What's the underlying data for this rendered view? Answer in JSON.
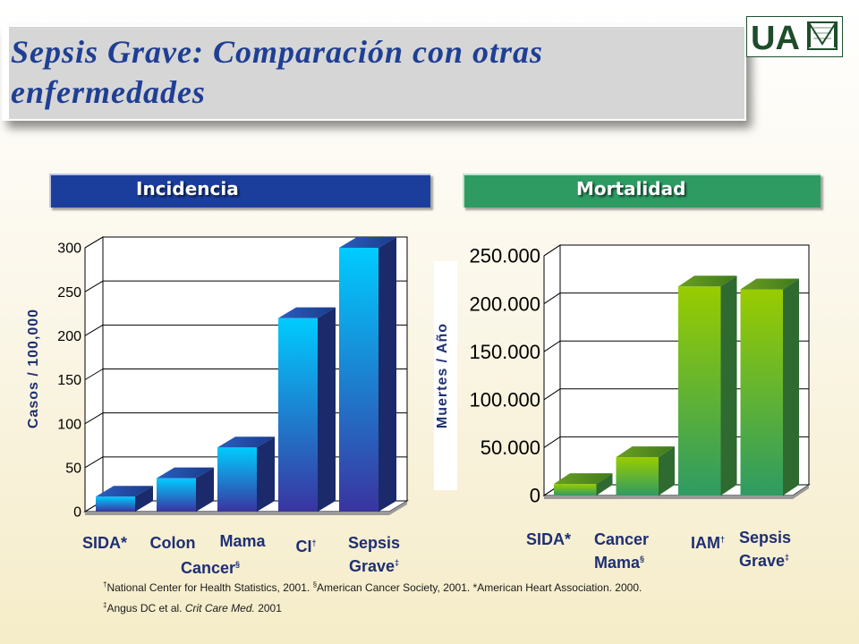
{
  "title": "Sepsis Grave: Comparación con otras enfermedades",
  "logo_text": "UA",
  "panels": {
    "left_tab": "Incidencia",
    "right_tab": "Mortalidad"
  },
  "colors": {
    "title": "#1f3f94",
    "tab_left": "#1b3e9c",
    "tab_right": "#2e9b63",
    "bar_blue_top": "#00ccff",
    "bar_blue_bottom": "#3a34a0",
    "bar_green_top": "#99cc00",
    "bar_green_bottom": "#2e9b63",
    "label_text": "#1e2f73"
  },
  "chart_data": [
    {
      "type": "bar",
      "ylabel": "Casos / 100,000",
      "ylim": [
        0,
        300
      ],
      "yticks": [
        "0",
        "50",
        "100",
        "150",
        "200",
        "250",
        "300"
      ],
      "categories": [
        {
          "label": "SIDA*",
          "sup": ""
        },
        {
          "label": "Colon",
          "sup": ""
        },
        {
          "label": "Mama Cancer",
          "sup": "§"
        },
        {
          "label": "CI",
          "sup": "†"
        },
        {
          "label": "Sepsis Grave",
          "sup": "‡"
        }
      ],
      "values": [
        17,
        38,
        73,
        220,
        300
      ],
      "grid": true
    },
    {
      "type": "bar",
      "ylabel": "Muertes / Año",
      "ylim": [
        0,
        250000
      ],
      "yticks": [
        "0",
        "50.000",
        "100.000",
        "150.000",
        "200.000",
        "250.000"
      ],
      "categories": [
        {
          "label": "SIDA*",
          "sup": ""
        },
        {
          "label": "Cancer Mama",
          "sup": "§"
        },
        {
          "label": "IAM",
          "sup": "†"
        },
        {
          "label": "Sepsis Grave",
          "sup": "‡"
        }
      ],
      "values": [
        12000,
        40000,
        218000,
        215000
      ],
      "grid": true
    }
  ],
  "footnotes": {
    "line1_parts": [
      "†",
      "National Center for Health Statistics, 2001. ",
      "§",
      "American Cancer Society, 2001. *American Heart Association. 2000."
    ],
    "line2_mark": "‡",
    "line2_authors": "Angus DC et al. ",
    "line2_journal": "Crit Care Med.",
    "line2_year": " 2001"
  },
  "labels_left": {
    "c1": "SIDA*",
    "c2": "Colon",
    "c3a": "Mama",
    "c3b": "Cancer",
    "c3sup": "§",
    "c4": "CI",
    "c4sup": "†",
    "c5a": "Sepsis",
    "c5b": "Grave",
    "c5sup": "‡"
  },
  "labels_right": {
    "c1": "SIDA*",
    "c2a": "Cancer",
    "c2b": "Mama",
    "c2sup": "§",
    "c3": "IAM",
    "c3sup": "†",
    "c4a": "Sepsis",
    "c4b": "Grave",
    "c4sup": "‡"
  }
}
